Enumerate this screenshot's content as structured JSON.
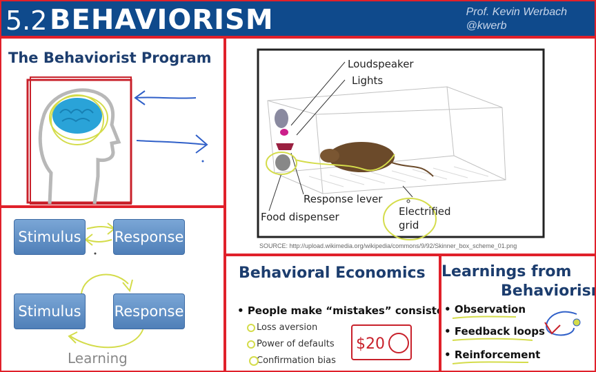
{
  "header": {
    "number": "5.2",
    "title": "BEHAVIORISM",
    "author_name": "Prof. Kevin Werbach",
    "author_handle": "@kwerb"
  },
  "program_panel": {
    "title": "The Behaviorist Program"
  },
  "skinner_box": {
    "labels": {
      "loudspeaker": "Loudspeaker",
      "lights": "Lights",
      "response_lever": "Response lever",
      "food_dispenser": "Food dispenser",
      "electrified": "Electrified",
      "grid": "grid"
    },
    "source": "SOURCE: http://upload.wikimedia.org/wikipedia/commons/9/92/Skinner_box_scheme_01.png"
  },
  "stimulus_response": {
    "top_stimulus": "Stimulus",
    "top_response": "Response",
    "bottom_stimulus": "Stimulus",
    "bottom_response": "Response",
    "learning": "Learning"
  },
  "behavioral_economics": {
    "title": "Behavioral Economics",
    "bullet": "People make “mistakes” consistently",
    "subs": [
      "Loss aversion",
      "Power of defaults",
      "Confirmation bias"
    ],
    "handwritten": "$20"
  },
  "learnings": {
    "title_line1": "Learnings from",
    "title_line2": "Behaviorism",
    "items": [
      "Observation",
      "Feedback loops",
      "Reinforcement"
    ]
  },
  "colors": {
    "header_bg": "#0f4a8c",
    "panel_border": "#e0202a",
    "title_blue": "#1c3d6e",
    "box_blue": "#5b8ac2",
    "annotation_yellow": "#d4dc4a",
    "annotation_red": "#c8202a",
    "annotation_blue": "#2f5fc8"
  }
}
